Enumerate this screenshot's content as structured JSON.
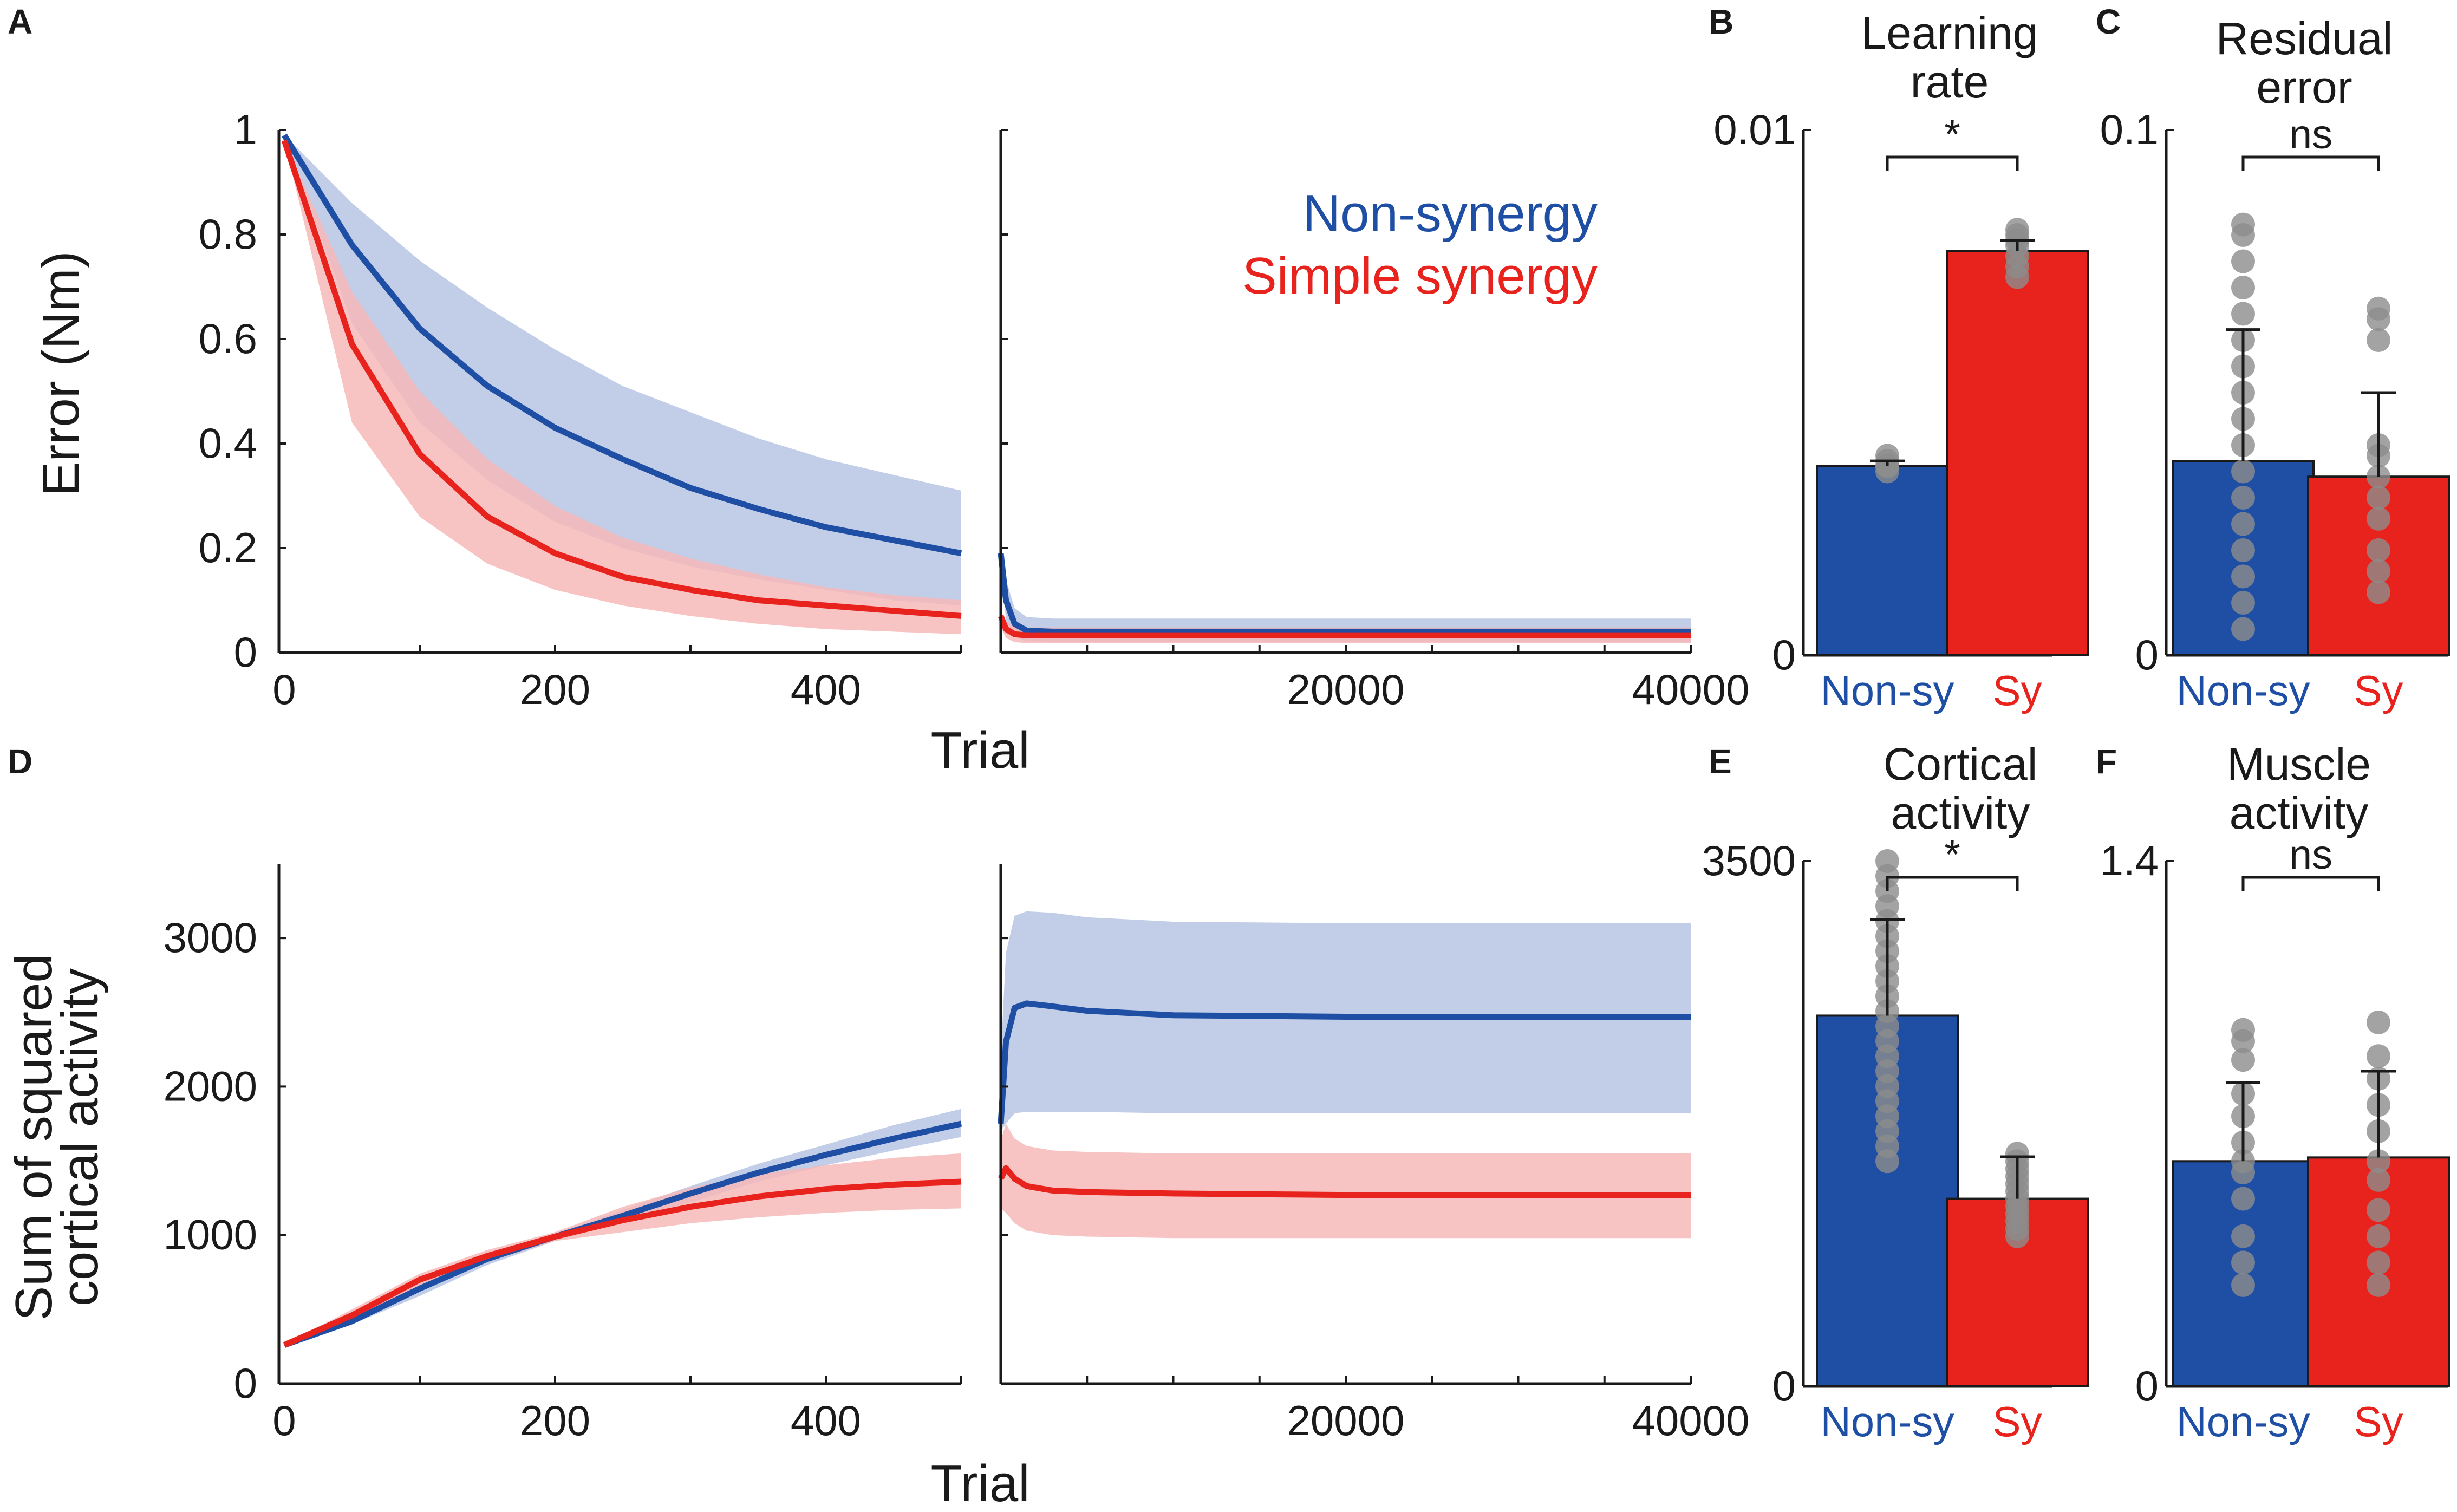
{
  "colors": {
    "non_synergy": "#1f4fa5",
    "simple_synergy": "#e8231d",
    "non_synergy_band": "#b7c6e4",
    "simple_synergy_band": "#f6b9b9",
    "dots": "#8c8c8c"
  },
  "panel_labels": {
    "A": "A",
    "B": "B",
    "C": "C",
    "D": "D",
    "E": "E",
    "F": "F"
  },
  "chart_data": [
    {
      "id": "A",
      "type": "line",
      "ylabel": "Error (Nm)",
      "xlabel": "Trial",
      "ylim": [
        0,
        1
      ],
      "yticks": [
        "0",
        "0.2",
        "0.4",
        "0.6",
        "0.8",
        "1"
      ],
      "yticks_values": [
        0,
        0.2,
        0.4,
        0.6,
        0.8,
        1
      ],
      "segment1": {
        "xlim": [
          0,
          500
        ],
        "xticks": [
          "0",
          "200",
          "400"
        ],
        "xticks_values": [
          0,
          200,
          400
        ]
      },
      "segment2": {
        "xlim": [
          0,
          40000
        ],
        "xticks": [
          "20000",
          "40000"
        ],
        "xticks_values": [
          20000,
          40000
        ]
      },
      "legend": [
        "Non-synergy",
        "Simple synergy"
      ],
      "series": [
        {
          "name": "Non-synergy",
          "x": [
            0,
            50,
            100,
            150,
            200,
            250,
            300,
            350,
            400,
            450,
            500
          ],
          "mean": [
            0.99,
            0.78,
            0.62,
            0.51,
            0.43,
            0.37,
            0.315,
            0.275,
            0.24,
            0.215,
            0.19
          ],
          "upper": [
            0.99,
            0.86,
            0.75,
            0.66,
            0.58,
            0.51,
            0.46,
            0.41,
            0.37,
            0.34,
            0.31
          ],
          "lower": [
            0.99,
            0.63,
            0.44,
            0.33,
            0.25,
            0.2,
            0.165,
            0.14,
            0.12,
            0.1,
            0.09
          ],
          "x2": [
            0,
            300,
            800,
            1500,
            3000,
            5000,
            10000,
            20000,
            30000,
            40000
          ],
          "mean2": [
            0.19,
            0.1,
            0.055,
            0.042,
            0.04,
            0.04,
            0.04,
            0.04,
            0.04,
            0.04
          ],
          "upper2": [
            0.19,
            0.14,
            0.085,
            0.068,
            0.065,
            0.065,
            0.065,
            0.065,
            0.065,
            0.065
          ],
          "lower2": [
            0.19,
            0.06,
            0.03,
            0.022,
            0.02,
            0.02,
            0.02,
            0.02,
            0.02,
            0.02
          ]
        },
        {
          "name": "Simple synergy",
          "x": [
            0,
            50,
            100,
            150,
            200,
            250,
            300,
            350,
            400,
            450,
            500
          ],
          "mean": [
            0.98,
            0.59,
            0.38,
            0.26,
            0.19,
            0.145,
            0.12,
            0.1,
            0.09,
            0.08,
            0.07
          ],
          "upper": [
            0.98,
            0.69,
            0.5,
            0.37,
            0.28,
            0.22,
            0.18,
            0.15,
            0.125,
            0.11,
            0.1
          ],
          "lower": [
            0.98,
            0.44,
            0.26,
            0.17,
            0.12,
            0.09,
            0.07,
            0.055,
            0.045,
            0.04,
            0.035
          ],
          "x2": [
            0,
            300,
            800,
            1500,
            3000,
            5000,
            10000,
            20000,
            30000,
            40000
          ],
          "mean2": [
            0.07,
            0.045,
            0.035,
            0.033,
            0.033,
            0.033,
            0.033,
            0.033,
            0.033,
            0.033
          ],
          "upper2": [
            0.08,
            0.06,
            0.05,
            0.048,
            0.048,
            0.048,
            0.048,
            0.048,
            0.048,
            0.048
          ],
          "lower2": [
            0.05,
            0.028,
            0.02,
            0.018,
            0.018,
            0.018,
            0.018,
            0.018,
            0.018,
            0.018
          ]
        }
      ]
    },
    {
      "id": "B",
      "type": "bar",
      "title": [
        "Learning",
        "rate"
      ],
      "categories": [
        "Non-sy",
        "Sy"
      ],
      "ylim": [
        0,
        0.01
      ],
      "yticks": [
        "0",
        "0.01"
      ],
      "yticks_values": [
        0,
        0.01
      ],
      "values": [
        0.0036,
        0.0077
      ],
      "errors": [
        0.0001,
        0.0002
      ],
      "significance": "*",
      "points": [
        [
          0.0035,
          0.0036,
          0.0037,
          0.0038,
          0.0036
        ],
        [
          0.0072,
          0.0074,
          0.0076,
          0.0078,
          0.008,
          0.0081,
          0.0079
        ]
      ]
    },
    {
      "id": "C",
      "type": "bar",
      "title": [
        "Residual",
        "error"
      ],
      "categories": [
        "Non-sy",
        "Sy"
      ],
      "ylim": [
        0,
        0.1
      ],
      "yticks": [
        "0",
        "0.1"
      ],
      "yticks_values": [
        0,
        0.1
      ],
      "values": [
        0.037,
        0.034
      ],
      "errors": [
        0.025,
        0.016
      ],
      "significance": "ns",
      "points": [
        [
          0.005,
          0.01,
          0.015,
          0.02,
          0.025,
          0.03,
          0.035,
          0.04,
          0.045,
          0.05,
          0.055,
          0.06,
          0.065,
          0.07,
          0.075,
          0.08,
          0.082
        ],
        [
          0.012,
          0.016,
          0.02,
          0.026,
          0.03,
          0.034,
          0.038,
          0.04,
          0.06,
          0.064,
          0.066
        ]
      ]
    },
    {
      "id": "D",
      "type": "line",
      "ylabel": [
        "Sum of squared",
        "cortical activity"
      ],
      "xlabel": "Trial",
      "ylim": [
        0,
        3500
      ],
      "yticks": [
        "0",
        "1000",
        "2000",
        "3000"
      ],
      "yticks_values": [
        0,
        1000,
        2000,
        3000
      ],
      "segment1": {
        "xlim": [
          0,
          500
        ],
        "xticks": [
          "0",
          "200",
          "400"
        ],
        "xticks_values": [
          0,
          200,
          400
        ]
      },
      "segment2": {
        "xlim": [
          0,
          40000
        ],
        "xticks": [
          "20000",
          "40000"
        ],
        "xticks_values": [
          20000,
          40000
        ]
      },
      "series": [
        {
          "name": "Non-synergy",
          "x": [
            0,
            50,
            100,
            150,
            200,
            250,
            300,
            350,
            400,
            450,
            500
          ],
          "mean": [
            260,
            420,
            640,
            840,
            990,
            1130,
            1280,
            1420,
            1540,
            1650,
            1750
          ],
          "upper": [
            265,
            440,
            690,
            880,
            1010,
            1170,
            1330,
            1480,
            1610,
            1740,
            1850
          ],
          "lower": [
            255,
            400,
            590,
            800,
            960,
            1090,
            1220,
            1360,
            1470,
            1570,
            1660
          ],
          "x2": [
            0,
            300,
            800,
            1500,
            3000,
            5000,
            10000,
            20000,
            30000,
            40000
          ],
          "mean2": [
            1750,
            2300,
            2530,
            2560,
            2540,
            2510,
            2480,
            2470,
            2470,
            2470
          ],
          "upper2": [
            2200,
            2900,
            3150,
            3180,
            3170,
            3140,
            3110,
            3100,
            3100,
            3100
          ],
          "lower2": [
            1700,
            1750,
            1820,
            1830,
            1830,
            1830,
            1820,
            1820,
            1820,
            1820
          ]
        },
        {
          "name": "Simple synergy",
          "x": [
            0,
            50,
            100,
            150,
            200,
            250,
            300,
            350,
            400,
            450,
            500
          ],
          "mean": [
            260,
            460,
            700,
            860,
            990,
            1100,
            1190,
            1260,
            1310,
            1340,
            1360
          ],
          "upper": [
            265,
            500,
            740,
            900,
            1020,
            1190,
            1320,
            1410,
            1470,
            1520,
            1550
          ],
          "lower": [
            255,
            420,
            660,
            820,
            960,
            1020,
            1080,
            1120,
            1150,
            1170,
            1180
          ],
          "x2": [
            0,
            300,
            800,
            1500,
            3000,
            5000,
            10000,
            20000,
            30000,
            40000
          ],
          "mean2": [
            1380,
            1450,
            1380,
            1330,
            1300,
            1290,
            1280,
            1270,
            1270,
            1270
          ],
          "upper2": [
            1640,
            1750,
            1650,
            1600,
            1570,
            1560,
            1550,
            1550,
            1550,
            1550
          ],
          "lower2": [
            1180,
            1150,
            1080,
            1030,
            1000,
            990,
            980,
            980,
            980,
            980
          ]
        }
      ]
    },
    {
      "id": "E",
      "type": "bar",
      "title": [
        "Cortical",
        "activity"
      ],
      "categories": [
        "Non-sy",
        "Sy"
      ],
      "ylim": [
        0,
        3500
      ],
      "yticks": [
        "0",
        "3500"
      ],
      "yticks_values": [
        0,
        3500
      ],
      "values": [
        2470,
        1250
      ],
      "errors": [
        640,
        280
      ],
      "significance": "*",
      "points": [
        [
          1500,
          1600,
          1700,
          1800,
          1900,
          2000,
          2100,
          2200,
          2300,
          2400,
          2500,
          2600,
          2700,
          2800,
          2900,
          3000,
          3100,
          3200,
          3300,
          3400,
          3500
        ],
        [
          1000,
          1050,
          1100,
          1150,
          1200,
          1250,
          1300,
          1350,
          1400,
          1450,
          1500,
          1550
        ]
      ]
    },
    {
      "id": "F",
      "type": "bar",
      "title": [
        "Muscle",
        "activity"
      ],
      "categories": [
        "Non-sy",
        "Sy"
      ],
      "ylim": [
        0,
        1.4
      ],
      "yticks": [
        "0",
        "1.4"
      ],
      "yticks_values": [
        0,
        1.4
      ],
      "values": [
        0.6,
        0.61
      ],
      "errors": [
        0.21,
        0.23
      ],
      "significance": "ns",
      "points": [
        [
          0.27,
          0.33,
          0.4,
          0.5,
          0.57,
          0.6,
          0.65,
          0.72,
          0.78,
          0.87,
          0.92,
          0.95
        ],
        [
          0.27,
          0.33,
          0.4,
          0.47,
          0.55,
          0.6,
          0.68,
          0.75,
          0.82,
          0.88,
          0.97
        ]
      ]
    }
  ]
}
